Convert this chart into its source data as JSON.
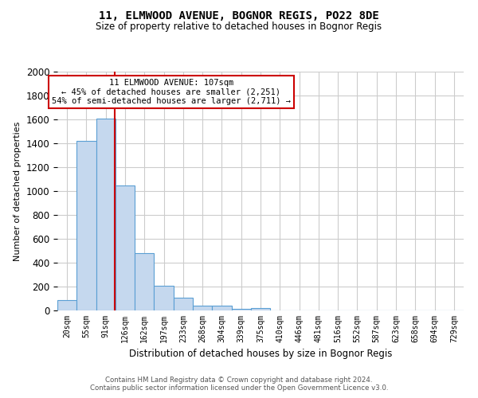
{
  "title": "11, ELMWOOD AVENUE, BOGNOR REGIS, PO22 8DE",
  "subtitle": "Size of property relative to detached houses in Bognor Regis",
  "xlabel": "Distribution of detached houses by size in Bognor Regis",
  "ylabel": "Number of detached properties",
  "footer_line1": "Contains HM Land Registry data © Crown copyright and database right 2024.",
  "footer_line2": "Contains public sector information licensed under the Open Government Licence v3.0.",
  "bin_labels": [
    "20sqm",
    "55sqm",
    "91sqm",
    "126sqm",
    "162sqm",
    "197sqm",
    "233sqm",
    "268sqm",
    "304sqm",
    "339sqm",
    "375sqm",
    "410sqm",
    "446sqm",
    "481sqm",
    "516sqm",
    "552sqm",
    "587sqm",
    "623sqm",
    "658sqm",
    "694sqm",
    "729sqm"
  ],
  "bar_values": [
    90,
    1420,
    1610,
    1050,
    480,
    210,
    110,
    40,
    40,
    15,
    20,
    0,
    0,
    0,
    0,
    0,
    0,
    0,
    0,
    0,
    0
  ],
  "bar_color": "#c5d8ee",
  "bar_edge_color": "#5a9fd4",
  "property_line_x": 2.45,
  "annotation_text_line1": "11 ELMWOOD AVENUE: 107sqm",
  "annotation_text_line2": "← 45% of detached houses are smaller (2,251)",
  "annotation_text_line3": "54% of semi-detached houses are larger (2,711) →",
  "annotation_box_facecolor": "#ffffff",
  "annotation_box_edgecolor": "#cc0000",
  "red_line_color": "#cc0000",
  "ylim_max": 2000,
  "yticks": [
    0,
    200,
    400,
    600,
    800,
    1000,
    1200,
    1400,
    1600,
    1800,
    2000
  ],
  "grid_color": "#cccccc",
  "bg_color": "#ffffff"
}
